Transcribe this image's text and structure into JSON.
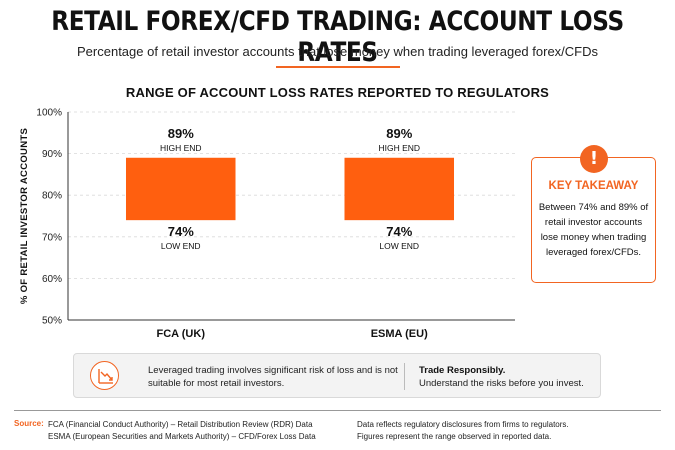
{
  "header": {
    "title": "RETAIL FOREX/CFD TRADING: ACCOUNT LOSS RATES",
    "subtitle": "Percentage of retail investor accounts that lose money when trading leveraged forex/CFDs"
  },
  "colors": {
    "accent": "#f26522",
    "bar": "#ff5f0f",
    "text": "#111111",
    "grid": "#d9d9d9"
  },
  "chart_data": {
    "type": "bar",
    "title": "RANGE OF ACCOUNT LOSS RATES REPORTED TO REGULATORS",
    "ylabel": "% OF RETAIL INVESTOR ACCOUNTS",
    "xlabel": "",
    "ylim": [
      50,
      100
    ],
    "yticks": [
      50,
      60,
      70,
      80,
      90,
      100
    ],
    "ytick_labels": [
      "50%",
      "60%",
      "70%",
      "80%",
      "90%",
      "100%"
    ],
    "grid": true,
    "categories": [
      "FCA (UK)",
      "ESMA (EU)"
    ],
    "ranges": [
      {
        "low": 74,
        "high": 89,
        "high_label": "89%",
        "high_caption": "HIGH END",
        "low_label": "74%",
        "low_caption": "LOW END"
      },
      {
        "low": 74,
        "high": 89,
        "high_label": "89%",
        "high_caption": "HIGH END",
        "low_label": "74%",
        "low_caption": "LOW END"
      }
    ]
  },
  "takeaway": {
    "icon": "exclamation-icon",
    "icon_glyph": "!",
    "title": "KEY TAKEAWAY",
    "text": "Between 74% and 89% of retail investor accounts lose money when trading leveraged forex/CFDs."
  },
  "notice": {
    "icon": "declining-chart-icon",
    "text": "Leveraged trading involves significant risk of loss and is not suitable for most retail investors.",
    "right_title": "Trade Responsibly.",
    "right_text": "Understand the risks before you invest."
  },
  "footer": {
    "source_label": "Source:",
    "sources": [
      "FCA (Financial Conduct Authority) – Retail Distribution Review (RDR) Data",
      "ESMA (European Securities and Markets Authority) – CFD/Forex Loss Data"
    ],
    "notes": [
      "Data reflects regulatory disclosures from firms to regulators.",
      "Figures represent the range observed in reported data."
    ]
  }
}
